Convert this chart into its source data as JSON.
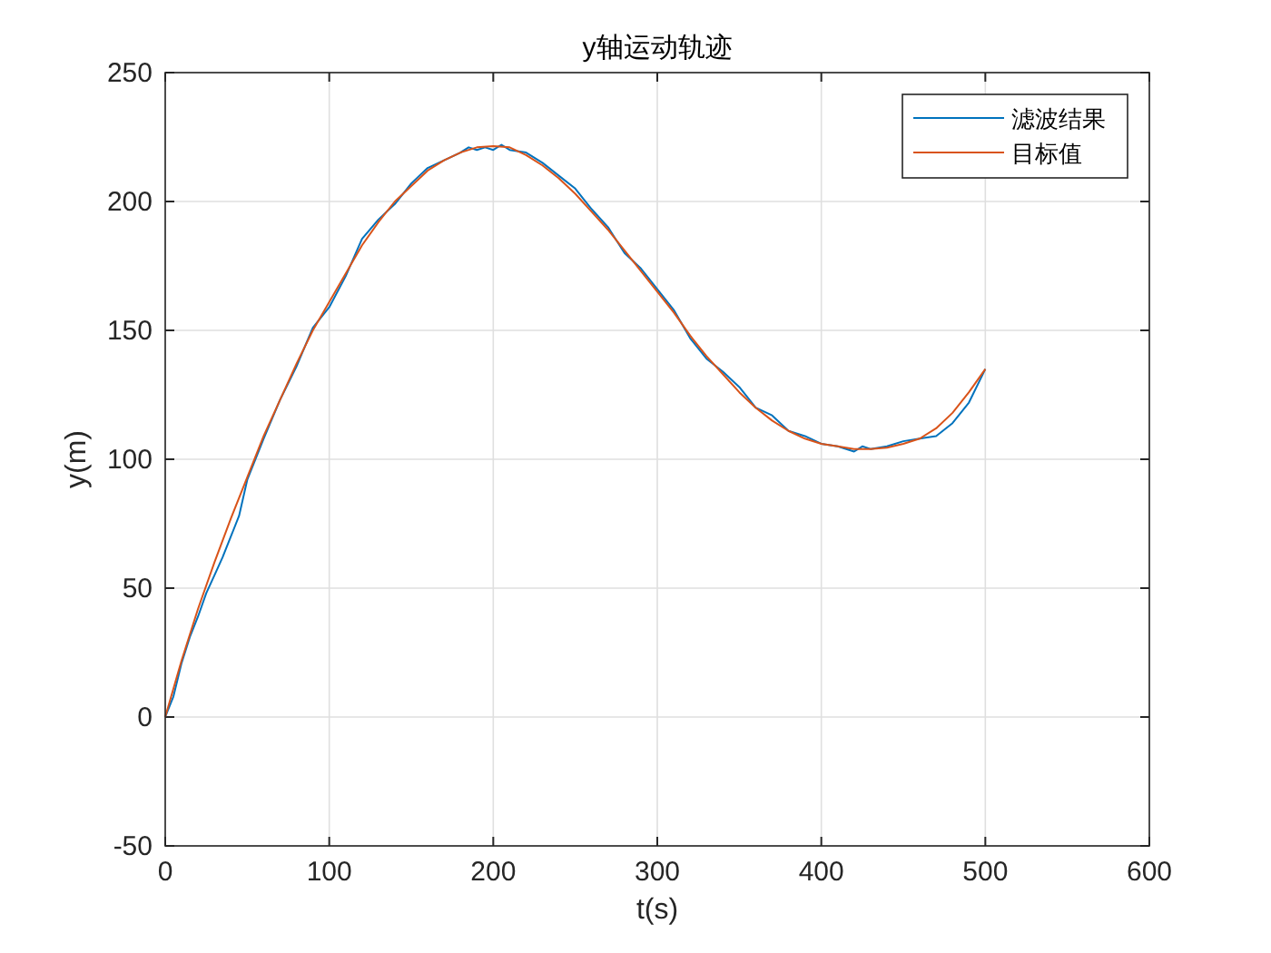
{
  "chart_data": {
    "type": "line",
    "title": "y轴运动轨迹",
    "xlabel": "t(s)",
    "ylabel": "y(m)",
    "xlim": [
      0,
      600
    ],
    "xticks": [
      0,
      100,
      200,
      300,
      400,
      500,
      600
    ],
    "ylim": [
      -50,
      250
    ],
    "yticks": [
      -50,
      0,
      50,
      100,
      150,
      200,
      250
    ],
    "grid": true,
    "legend": "top right",
    "marker": "none",
    "line_style": "solid",
    "series": [
      {
        "name": "滤波结果",
        "color": "#0072bd",
        "x": [
          0,
          5,
          10,
          15,
          20,
          25,
          30,
          35,
          40,
          45,
          50,
          60,
          70,
          80,
          90,
          100,
          110,
          120,
          130,
          140,
          150,
          160,
          170,
          180,
          185,
          190,
          195,
          200,
          205,
          210,
          220,
          230,
          240,
          250,
          260,
          270,
          280,
          290,
          300,
          310,
          320,
          330,
          340,
          350,
          360,
          370,
          380,
          390,
          400,
          410,
          420,
          425,
          430,
          440,
          450,
          460,
          470,
          480,
          490,
          500
        ],
        "values": [
          0,
          8,
          21,
          31,
          39,
          48,
          55,
          62,
          70,
          78,
          92,
          108,
          123,
          136,
          151,
          159,
          171,
          185.5,
          193,
          199,
          207,
          213,
          216,
          219,
          221,
          220,
          221,
          220,
          222,
          220,
          219,
          215,
          210,
          205,
          197,
          190,
          180,
          174,
          166,
          158,
          147,
          139,
          134,
          128,
          120,
          117,
          111,
          109,
          106,
          105,
          103,
          105,
          104,
          105,
          107,
          108,
          109,
          114,
          122,
          135
        ]
      },
      {
        "name": "目标值",
        "color": "#d95319",
        "x": [
          0,
          10,
          20,
          30,
          40,
          50,
          60,
          70,
          80,
          90,
          100,
          110,
          120,
          130,
          140,
          150,
          160,
          170,
          180,
          190,
          200,
          210,
          220,
          230,
          240,
          250,
          260,
          270,
          280,
          290,
          300,
          310,
          320,
          330,
          340,
          350,
          360,
          370,
          380,
          390,
          400,
          410,
          420,
          430,
          440,
          450,
          460,
          470,
          480,
          490,
          500
        ],
        "values": [
          0,
          22,
          42,
          60,
          77,
          93,
          109,
          123,
          137,
          150,
          161,
          172,
          183,
          192,
          200,
          206,
          212,
          216,
          219,
          221,
          221.5,
          221,
          218,
          214,
          209,
          203,
          196,
          189,
          181,
          173,
          165,
          157,
          148,
          140,
          133,
          126,
          120,
          115,
          111,
          108,
          106,
          105,
          104,
          104,
          104.5,
          106,
          108,
          112,
          118,
          126,
          135
        ]
      }
    ]
  }
}
